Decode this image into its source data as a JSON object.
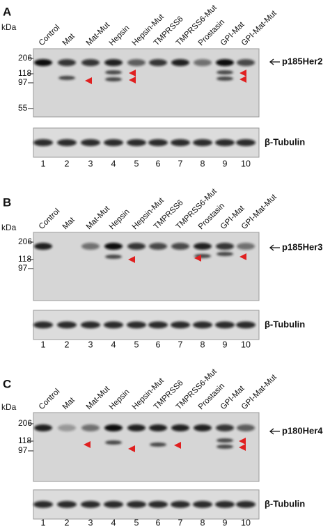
{
  "panels": [
    {
      "letter": "A",
      "kda_label": "kDa",
      "markers": [
        "206",
        "118",
        "97",
        "55"
      ],
      "lanes": [
        "Control",
        "Mat",
        "Mat-Mut",
        "Hepsin",
        "Hepsin-Mut",
        "TMPRSS6",
        "TMPRSS6-Mut",
        "Prostasin",
        "GPI-Mat",
        "GPI-Mat-Mut"
      ],
      "band_label": "p185Her2",
      "loading_label": "β-Tubulin",
      "lane_numbers": [
        "1",
        "2",
        "3",
        "4",
        "5",
        "6",
        "7",
        "8",
        "9",
        "10"
      ]
    },
    {
      "letter": "B",
      "kda_label": "kDa",
      "markers": [
        "206",
        "118",
        "97"
      ],
      "lanes": [
        "Control",
        "Mat",
        "Mat-Mut",
        "Hepsin",
        "Hepsin-Mut",
        "TMPRSS6",
        "TMPRSS6-Mut",
        "Prostasin",
        "GPI-Mat",
        "GPI-Mat-Mut"
      ],
      "band_label": "p185Her3",
      "loading_label": "β-Tubulin",
      "lane_numbers": [
        "1",
        "2",
        "3",
        "4",
        "5",
        "6",
        "7",
        "8",
        "9",
        "10"
      ]
    },
    {
      "letter": "C",
      "kda_label": "kDa",
      "markers": [
        "206",
        "118",
        "97"
      ],
      "lanes": [
        "Control",
        "Mat",
        "Mat-Mut",
        "Hepsin",
        "Hepsin-Mut",
        "TMPRSS6",
        "TMPRSS6-Mut",
        "Prostasin",
        "GPI-Mat",
        "GPI-Mat-Mut"
      ],
      "band_label": "p180Her4",
      "loading_label": "β-Tubulin",
      "lane_numbers": [
        "1",
        "2",
        "3",
        "4",
        "5",
        "6",
        "7",
        "8",
        "9",
        "10"
      ]
    }
  ]
}
